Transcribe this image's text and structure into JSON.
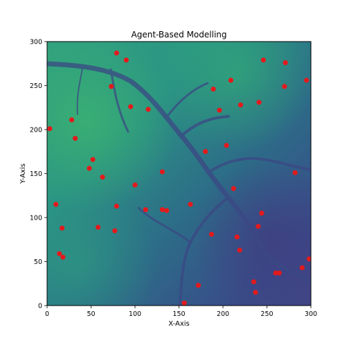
{
  "chart_data": {
    "type": "scatter",
    "title": "Agent-Based Modelling",
    "xlabel": "X-Axis",
    "ylabel": "Y-Axis",
    "xlim": [
      0,
      300
    ],
    "ylim": [
      0,
      300
    ],
    "xticks": [
      "0",
      "50",
      "100",
      "150",
      "200",
      "250",
      "300"
    ],
    "yticks": [
      "0",
      "50",
      "100",
      "150",
      "200",
      "250",
      "300"
    ],
    "grid": false,
    "background": "heatmap terrain (viridis colormap) with darker valley channels",
    "colors": {
      "marker": "#e31a1c",
      "terrain_low": "#3b4f8e",
      "terrain_high": "#37b27c"
    },
    "series": [
      {
        "x": [
          3,
          10,
          14,
          17,
          18,
          28,
          32,
          48,
          52,
          58,
          63,
          73,
          77,
          79,
          79,
          90,
          95,
          100,
          112,
          115,
          131,
          131,
          136,
          156,
          163,
          172,
          180,
          187,
          189,
          196,
          204,
          209,
          212,
          216,
          219,
          220,
          235,
          237,
          240,
          241,
          244,
          246,
          260,
          264,
          270,
          271,
          282,
          290,
          295,
          298
        ],
        "y": [
          201,
          115,
          59,
          88,
          55,
          211,
          190,
          156,
          166,
          89,
          146,
          249,
          85,
          113,
          287,
          279,
          226,
          137,
          109,
          223,
          109,
          152,
          108,
          3,
          115,
          23,
          175,
          81,
          246,
          222,
          182,
          256,
          133,
          78,
          63,
          228,
          27,
          15,
          90,
          231,
          105,
          279,
          37,
          37,
          249,
          276,
          151,
          43,
          256,
          53
        ]
      }
    ]
  }
}
